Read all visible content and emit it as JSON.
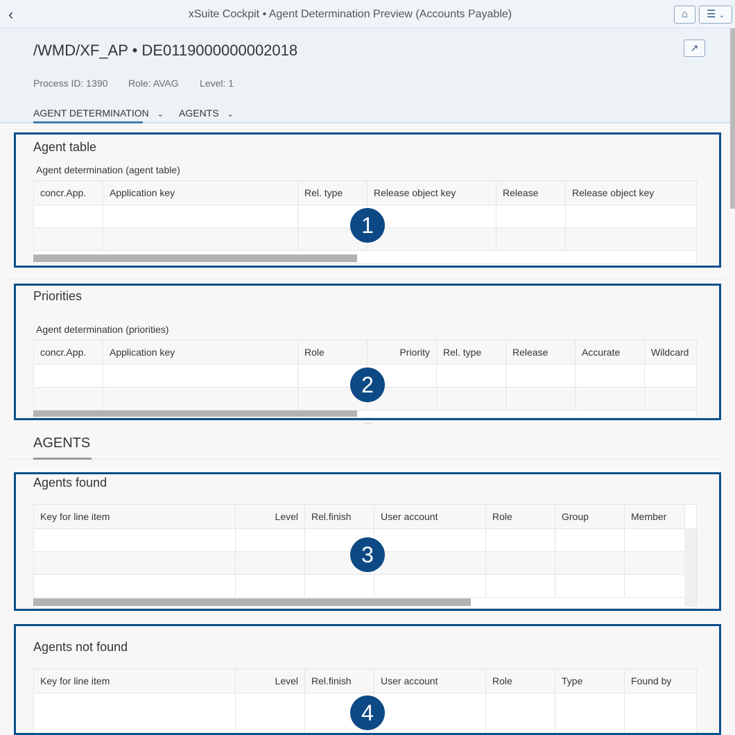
{
  "shell": {
    "title": "xSuite Cockpit • Agent Determination Preview (Accounts Payable)",
    "back_icon": "chevron-left-icon",
    "home_icon": "home-icon",
    "menu_icon": "hamburger-menu-icon"
  },
  "header": {
    "title": "/WMD/XF_AP • DE0119000000002018",
    "attributes": [
      "Process ID: 1390",
      "Role: AVAG",
      "Level: 1"
    ],
    "tabs": [
      {
        "label": "AGENT DETERMINATION"
      },
      {
        "label": "AGENTS"
      }
    ],
    "share_icon": "share-icon"
  },
  "sections": {
    "agent_table": {
      "title": "Agent table",
      "subtitle": "Agent determination (agent table)",
      "columns": [
        "concr.App.",
        "Application key",
        "Rel. type",
        "Release object key",
        "Release",
        "Release object key"
      ],
      "rows": 2,
      "badge": "1"
    },
    "priorities": {
      "title": "Priorities",
      "subtitle": "Agent determination (priorities)",
      "columns": [
        "concr.App.",
        "Application key",
        "Role",
        "Priority",
        "Rel. type",
        "Release",
        "Accurate",
        "Wildcard"
      ],
      "rows": 2,
      "badge": "2"
    },
    "agents_heading": "AGENTS",
    "agents_found": {
      "title": "Agents found",
      "columns": [
        "Key for line item",
        "Level",
        "Rel.finish",
        "User account",
        "Role",
        "Group",
        "Member"
      ],
      "rows": 3,
      "badge": "3"
    },
    "agents_not_found": {
      "title": "Agents not found",
      "columns": [
        "Key for line item",
        "Level",
        "Rel.finish",
        "User account",
        "Role",
        "Type",
        "Found by"
      ],
      "rows": 1,
      "badge": "4"
    }
  },
  "colors": {
    "highlight_box": "#0b4f8c",
    "badge": "#0d4a85",
    "tab_underline": "#3f7cac"
  }
}
